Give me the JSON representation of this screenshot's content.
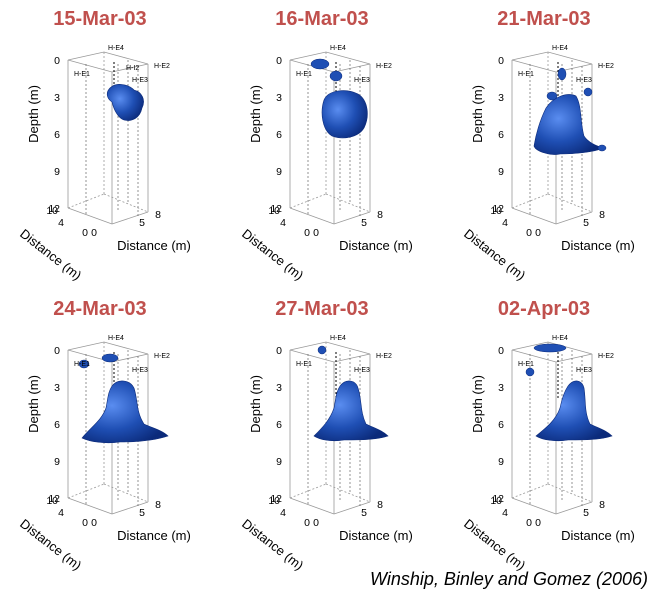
{
  "panels": [
    {
      "title": "15-Mar-03",
      "blob": "small"
    },
    {
      "title": "16-Mar-03",
      "blob": "ball"
    },
    {
      "title": "21-Mar-03",
      "blob": "tall"
    },
    {
      "title": "24-Mar-03",
      "blob": "cone"
    },
    {
      "title": "27-Mar-03",
      "blob": "cone2"
    },
    {
      "title": "02-Apr-03",
      "blob": "cone3"
    }
  ],
  "axes": {
    "depth_label": "Depth (m)",
    "distance_label": "Distance (m)",
    "depth_ticks": [
      "0",
      "3",
      "6",
      "9",
      "12"
    ],
    "distance_left_ticks": [
      "10",
      "4",
      "0"
    ],
    "distance_right_ticks": [
      "0",
      "5",
      "8"
    ],
    "well_labels": [
      "H-E4",
      "H-E1",
      "H-E2",
      "H-E3",
      "H-I2"
    ]
  },
  "citation": "Winship, Binley and Gomez (2006)",
  "colors": {
    "title": "#c0504d",
    "plume": "#1f4fb4"
  }
}
